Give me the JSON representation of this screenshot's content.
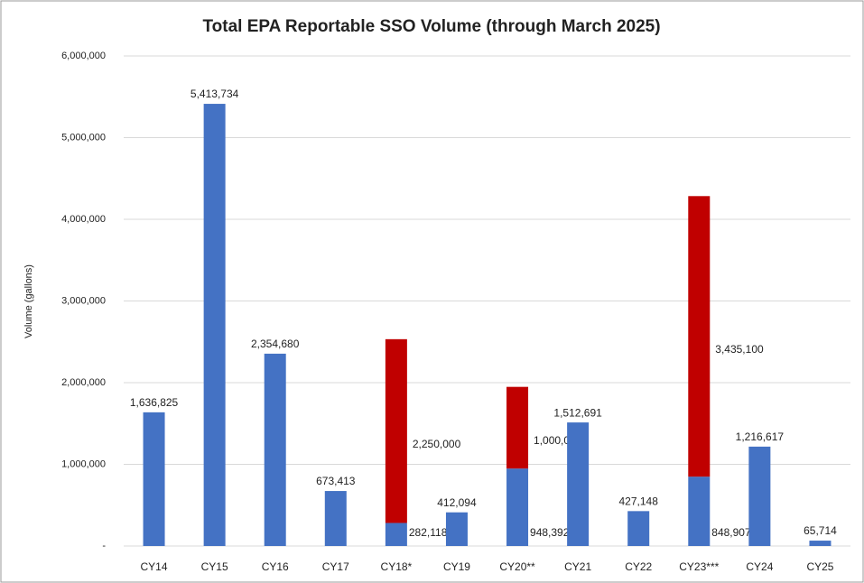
{
  "chart_data": {
    "type": "stacked_bar",
    "title": "Total EPA Reportable SSO Volume (through March 2025)",
    "y_label": "Volume (gallons)",
    "categories": [
      "CY14",
      "CY15",
      "CY16",
      "CY17",
      "CY18*",
      "CY19",
      "CY20**",
      "CY21",
      "CY22",
      "CY23***",
      "CY24",
      "CY25"
    ],
    "series": [
      {
        "color": "#4472c4",
        "values": [
          1636825,
          5413734,
          2354680,
          673413,
          282118,
          412094,
          948392,
          1512691,
          427148,
          848907,
          1216617,
          65714
        ],
        "value_labels": [
          "1,636,825",
          "5,413,734",
          "2,354,680",
          "673,413",
          "282,118",
          "412,094",
          "948,392",
          "1,512,691",
          "427,148",
          "848,907",
          "1,216,617",
          "65,714"
        ]
      },
      {
        "color": "#c00000",
        "values": [
          null,
          null,
          null,
          null,
          2250000,
          null,
          1000000,
          null,
          null,
          3435100,
          null,
          null
        ],
        "value_labels": [
          null,
          null,
          null,
          null,
          "2,250,000",
          null,
          "1,000,000",
          null,
          null,
          "3,435,100",
          null,
          null
        ]
      }
    ],
    "ylim": [
      0,
      6000000
    ],
    "yticks": [
      {
        "value": 0,
        "label": "-"
      },
      {
        "value": 1000000,
        "label": "1,000,000"
      },
      {
        "value": 2000000,
        "label": "2,000,000"
      },
      {
        "value": 3000000,
        "label": "3,000,000"
      },
      {
        "value": 4000000,
        "label": "4,000,000"
      },
      {
        "value": 5000000,
        "label": "5,000,000"
      },
      {
        "value": 6000000,
        "label": "6,000,000"
      }
    ],
    "grid": true
  }
}
